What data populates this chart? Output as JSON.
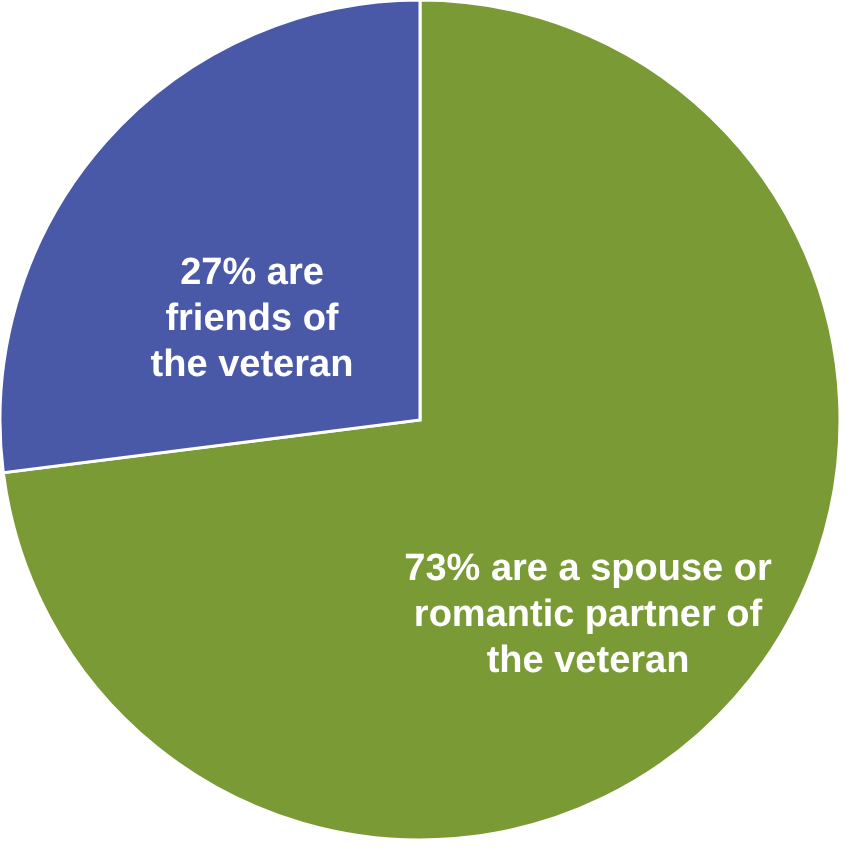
{
  "chart_data": {
    "type": "pie",
    "categories": [
      "73% are a spouse or romantic partner of the veteran",
      "27% are friends of the veteran"
    ],
    "values": [
      73,
      27
    ],
    "colors": [
      "#7a9a35",
      "#4a58a8"
    ]
  }
}
